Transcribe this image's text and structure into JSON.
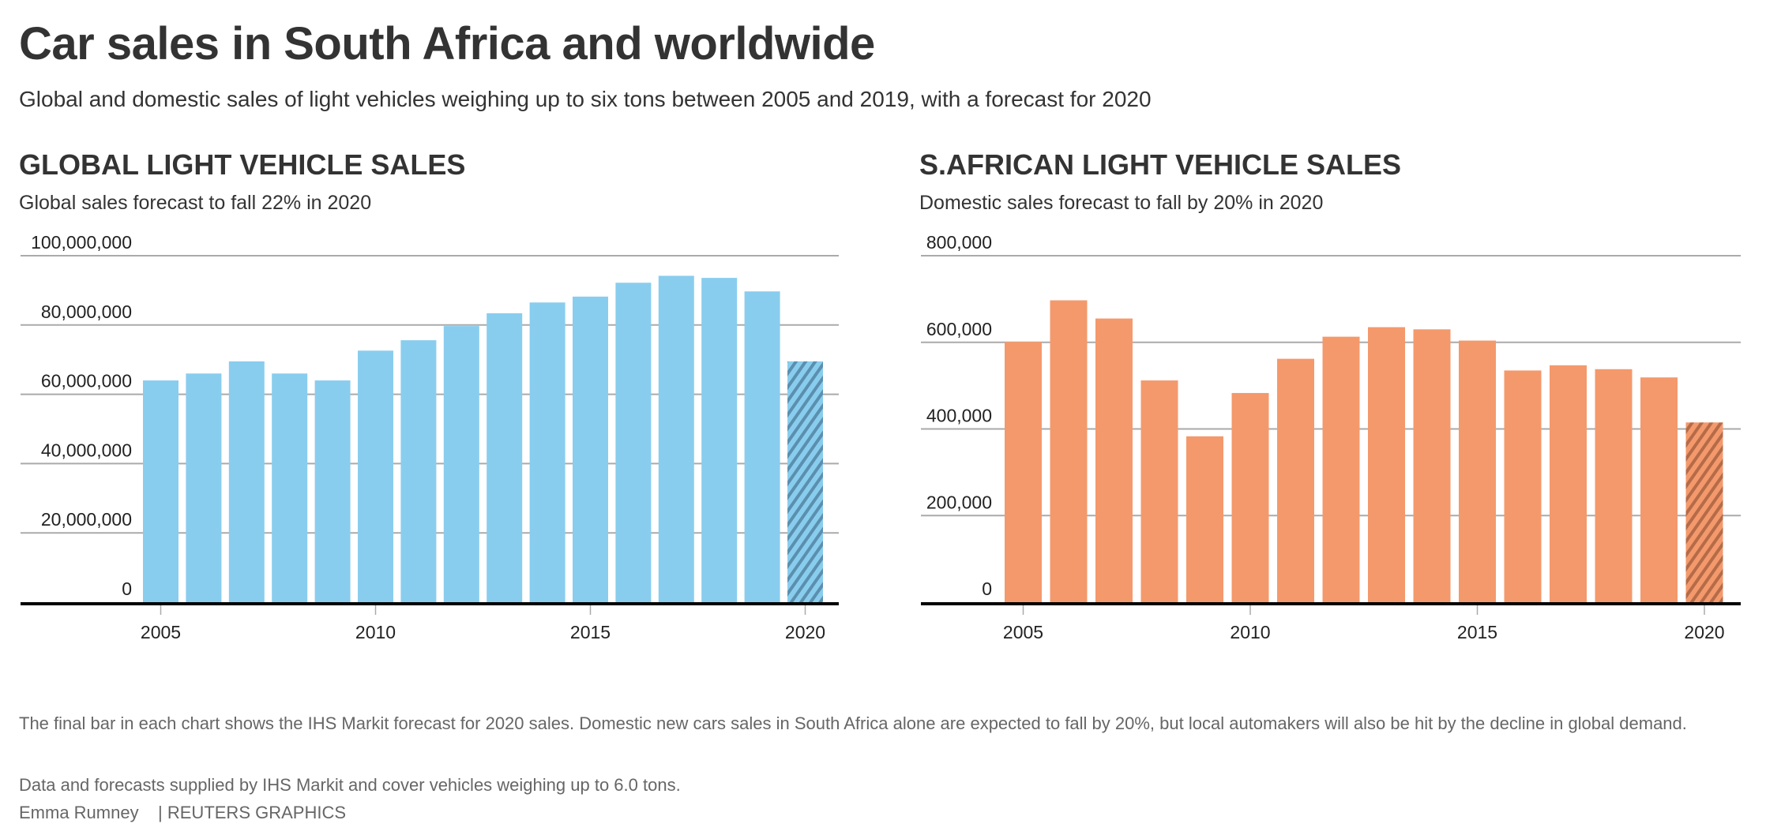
{
  "title": "Car sales in South Africa and worldwide",
  "subtitle": "Global and domestic sales of light vehicles weighing up to six tons between 2005 and 2019, with a forecast for 2020",
  "chart_data": [
    {
      "type": "bar",
      "title": "GLOBAL LIGHT VEHICLE SALES",
      "subtitle": "Global sales forecast to fall 22% in 2020",
      "categories": [
        2005,
        2006,
        2007,
        2008,
        2009,
        2010,
        2011,
        2012,
        2013,
        2014,
        2015,
        2016,
        2017,
        2018,
        2019,
        2020
      ],
      "values": [
        64000000,
        66000000,
        69500000,
        66000000,
        64000000,
        72600000,
        75600000,
        79700000,
        83400000,
        86500000,
        88200000,
        92200000,
        94200000,
        93600000,
        89700000,
        69500000
      ],
      "forecast": [
        false,
        false,
        false,
        false,
        false,
        false,
        false,
        false,
        false,
        false,
        false,
        false,
        false,
        false,
        false,
        true
      ],
      "ylim": [
        0,
        100000000
      ],
      "yticks": [
        "0",
        "20,000,000",
        "40,000,000",
        "60,000,000",
        "80,000,000",
        "100,000,000"
      ],
      "ytick_values": [
        0,
        20000000,
        40000000,
        60000000,
        80000000,
        100000000
      ],
      "xticks": [
        "2005",
        "2010",
        "2015",
        "2020"
      ],
      "grid": true,
      "color": "#89CDEE",
      "hatch_color": "#5B8FAE"
    },
    {
      "type": "bar",
      "title": "S.AFRICAN LIGHT VEHICLE SALES",
      "subtitle": "Domestic sales forecast to fall by 20% in 2020",
      "categories": [
        2005,
        2006,
        2007,
        2008,
        2009,
        2010,
        2011,
        2012,
        2013,
        2014,
        2015,
        2016,
        2017,
        2018,
        2019,
        2020
      ],
      "values": [
        601000,
        697000,
        655000,
        512000,
        383000,
        483000,
        562000,
        613000,
        635000,
        630000,
        604000,
        535000,
        547000,
        538000,
        519000,
        415000
      ],
      "forecast": [
        false,
        false,
        false,
        false,
        false,
        false,
        false,
        false,
        false,
        false,
        false,
        false,
        false,
        false,
        false,
        true
      ],
      "ylim": [
        0,
        800000
      ],
      "yticks": [
        "0",
        "200,000",
        "400,000",
        "600,000",
        "800,000"
      ],
      "ytick_values": [
        0,
        200000,
        400000,
        600000,
        800000
      ],
      "xticks": [
        "2005",
        "2010",
        "2015",
        "2020"
      ],
      "grid": true,
      "color": "#F4996C",
      "hatch_color": "#B56B47"
    }
  ],
  "footer": {
    "note": "The final bar in each chart shows the IHS Markit forecast for 2020 sales. Domestic new cars sales in South Africa alone are expected to fall by 20%, but local automakers will also be hit by the decline in global demand.",
    "source": "Data and forecasts supplied by IHS Markit and cover vehicles weighing up to 6.0 tons.",
    "credit": "Emma Rumney    | REUTERS GRAPHICS"
  }
}
